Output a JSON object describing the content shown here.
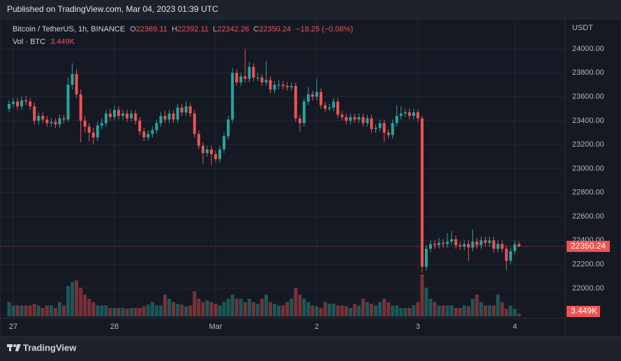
{
  "header": {
    "published": "Published on TradingView.com, Mar 04, 2023 01:39 UTC"
  },
  "legend": {
    "symbol": "Bitcoin / TetherUS, 1h, BINANCE",
    "fields": [
      {
        "key": "O",
        "value": "22369.11"
      },
      {
        "key": "H",
        "value": "22392.11"
      },
      {
        "key": "L",
        "value": "22342.26"
      },
      {
        "key": "C",
        "value": "22350.24"
      }
    ],
    "change": "−18.25 (−0.08%)",
    "volume_title": "Vol · BTC",
    "volume_value": "3.449K"
  },
  "chart_data": {
    "type": "candlestick",
    "ohlc": [
      [
        23500,
        23570,
        23470,
        23540
      ],
      [
        23540,
        23590,
        23510,
        23560
      ],
      [
        23560,
        23590,
        23490,
        23520
      ],
      [
        23520,
        23600,
        23490,
        23570
      ],
      [
        23570,
        23610,
        23530,
        23560
      ],
      [
        23560,
        23590,
        23490,
        23520
      ],
      [
        23520,
        23550,
        23370,
        23400
      ],
      [
        23400,
        23470,
        23370,
        23440
      ],
      [
        23440,
        23470,
        23380,
        23410
      ],
      [
        23410,
        23440,
        23350,
        23380
      ],
      [
        23380,
        23420,
        23350,
        23390
      ],
      [
        23390,
        23420,
        23340,
        23370
      ],
      [
        23370,
        23450,
        23340,
        23420
      ],
      [
        23420,
        23450,
        23380,
        23410
      ],
      [
        23410,
        23760,
        23390,
        23700
      ],
      [
        23700,
        23880,
        23660,
        23790
      ],
      [
        23790,
        23830,
        23590,
        23620
      ],
      [
        23620,
        23660,
        23220,
        23400
      ],
      [
        23400,
        23440,
        23300,
        23350
      ],
      [
        23350,
        23380,
        23230,
        23300
      ],
      [
        23300,
        23340,
        23200,
        23260
      ],
      [
        23260,
        23390,
        23230,
        23360
      ],
      [
        23360,
        23420,
        23330,
        23380
      ],
      [
        23380,
        23490,
        23350,
        23460
      ],
      [
        23460,
        23500,
        23400,
        23430
      ],
      [
        23430,
        23530,
        23400,
        23490
      ],
      [
        23490,
        23520,
        23410,
        23440
      ],
      [
        23440,
        23490,
        23410,
        23460
      ],
      [
        23460,
        23490,
        23390,
        23420
      ],
      [
        23420,
        23490,
        23390,
        23460
      ],
      [
        23460,
        23490,
        23370,
        23400
      ],
      [
        23400,
        23430,
        23280,
        23310
      ],
      [
        23310,
        23340,
        23230,
        23260
      ],
      [
        23260,
        23320,
        23230,
        23290
      ],
      [
        23290,
        23350,
        23260,
        23320
      ],
      [
        23320,
        23410,
        23290,
        23380
      ],
      [
        23380,
        23470,
        23350,
        23440
      ],
      [
        23440,
        23480,
        23380,
        23410
      ],
      [
        23410,
        23490,
        23380,
        23460
      ],
      [
        23460,
        23490,
        23380,
        23410
      ],
      [
        23410,
        23540,
        23380,
        23510
      ],
      [
        23510,
        23540,
        23440,
        23470
      ],
      [
        23470,
        23560,
        23440,
        23520
      ],
      [
        23520,
        23550,
        23430,
        23460
      ],
      [
        23460,
        23490,
        23260,
        23290
      ],
      [
        23290,
        23320,
        23160,
        23190
      ],
      [
        23190,
        23220,
        23040,
        23130
      ],
      [
        23130,
        23190,
        23100,
        23160
      ],
      [
        23160,
        23190,
        23030,
        23120
      ],
      [
        23120,
        23150,
        23050,
        23080
      ],
      [
        23080,
        23190,
        23050,
        23160
      ],
      [
        23160,
        23300,
        23130,
        23270
      ],
      [
        23270,
        23440,
        23240,
        23410
      ],
      [
        23410,
        23840,
        23380,
        23800
      ],
      [
        23800,
        23830,
        23690,
        23720
      ],
      [
        23720,
        23800,
        23690,
        23770
      ],
      [
        23770,
        24000,
        23720,
        23750
      ],
      [
        23750,
        23890,
        23720,
        23850
      ],
      [
        23850,
        23880,
        23730,
        23760
      ],
      [
        23760,
        23800,
        23730,
        23760
      ],
      [
        23760,
        23790,
        23690,
        23720
      ],
      [
        23720,
        23900,
        23690,
        23740
      ],
      [
        23740,
        23770,
        23630,
        23660
      ],
      [
        23660,
        23730,
        23630,
        23700
      ],
      [
        23700,
        23740,
        23660,
        23700
      ],
      [
        23700,
        23730,
        23660,
        23690
      ],
      [
        23690,
        23720,
        23650,
        23680
      ],
      [
        23680,
        23720,
        23650,
        23690
      ],
      [
        23690,
        23720,
        23390,
        23420
      ],
      [
        23420,
        23450,
        23310,
        23380
      ],
      [
        23380,
        23590,
        23350,
        23560
      ],
      [
        23560,
        23680,
        23530,
        23620
      ],
      [
        23620,
        23650,
        23570,
        23600
      ],
      [
        23600,
        23750,
        23570,
        23640
      ],
      [
        23640,
        23670,
        23500,
        23530
      ],
      [
        23530,
        23560,
        23470,
        23500
      ],
      [
        23500,
        23540,
        23480,
        23510
      ],
      [
        23510,
        23590,
        23480,
        23560
      ],
      [
        23560,
        23590,
        23420,
        23450
      ],
      [
        23450,
        23480,
        23400,
        23430
      ],
      [
        23430,
        23460,
        23370,
        23400
      ],
      [
        23400,
        23460,
        23370,
        23430
      ],
      [
        23430,
        23460,
        23380,
        23410
      ],
      [
        23410,
        23460,
        23380,
        23430
      ],
      [
        23430,
        23460,
        23350,
        23380
      ],
      [
        23380,
        23450,
        23350,
        23420
      ],
      [
        23420,
        23450,
        23300,
        23330
      ],
      [
        23330,
        23370,
        23300,
        23340
      ],
      [
        23340,
        23410,
        23310,
        23380
      ],
      [
        23380,
        23410,
        23220,
        23300
      ],
      [
        23300,
        23330,
        23250,
        23280
      ],
      [
        23280,
        23410,
        23250,
        23380
      ],
      [
        23380,
        23530,
        23350,
        23440
      ],
      [
        23440,
        23520,
        23410,
        23460
      ],
      [
        23460,
        23500,
        23430,
        23470
      ],
      [
        23470,
        23500,
        23410,
        23440
      ],
      [
        23440,
        23500,
        23410,
        23470
      ],
      [
        23470,
        23490,
        23390,
        23420
      ],
      [
        23420,
        23440,
        22130,
        22180
      ],
      [
        22180,
        22360,
        22150,
        22330
      ],
      [
        22330,
        22400,
        22300,
        22370
      ],
      [
        22370,
        22400,
        22330,
        22360
      ],
      [
        22360,
        22420,
        22330,
        22380
      ],
      [
        22380,
        22410,
        22340,
        22370
      ],
      [
        22370,
        22460,
        22340,
        22390
      ],
      [
        22390,
        22480,
        22360,
        22410
      ],
      [
        22410,
        22440,
        22330,
        22360
      ],
      [
        22360,
        22390,
        22320,
        22350
      ],
      [
        22350,
        22400,
        22320,
        22370
      ],
      [
        22370,
        22400,
        22230,
        22340
      ],
      [
        22340,
        22490,
        22310,
        22390
      ],
      [
        22390,
        22420,
        22330,
        22360
      ],
      [
        22360,
        22430,
        22330,
        22400
      ],
      [
        22400,
        22430,
        22350,
        22380
      ],
      [
        22380,
        22430,
        22350,
        22400
      ],
      [
        22400,
        22430,
        22300,
        22330
      ],
      [
        22330,
        22400,
        22300,
        22370
      ],
      [
        22370,
        22400,
        22300,
        22330
      ],
      [
        22330,
        22360,
        22150,
        22230
      ],
      [
        22230,
        22340,
        22200,
        22310
      ],
      [
        22310,
        22400,
        22280,
        22368.49
      ],
      [
        22369.11,
        22392.11,
        22342.26,
        22350.24
      ]
    ],
    "volume": [
      17000,
      13000,
      13000,
      13000,
      13000,
      13000,
      15000,
      13000,
      10000,
      13000,
      13000,
      10000,
      17000,
      13000,
      36000,
      41000,
      43000,
      34000,
      26000,
      21000,
      17000,
      13000,
      13000,
      13000,
      10000,
      10000,
      10000,
      10000,
      9000,
      10000,
      10000,
      10000,
      12000,
      14000,
      17000,
      13000,
      13000,
      26000,
      21000,
      17000,
      15000,
      14000,
      12000,
      13000,
      30000,
      21000,
      17000,
      19000,
      17000,
      15000,
      13000,
      17000,
      21000,
      26000,
      21000,
      21000,
      17000,
      21000,
      17000,
      15000,
      21000,
      26000,
      17000,
      15000,
      13000,
      13000,
      17000,
      21000,
      34000,
      26000,
      21000,
      17000,
      13000,
      12000,
      10000,
      17000,
      15000,
      15000,
      13000,
      13000,
      12000,
      10000,
      15000,
      13000,
      21000,
      17000,
      15000,
      13000,
      17000,
      21000,
      17000,
      13000,
      13000,
      10000,
      10000,
      10000,
      13000,
      17000,
      50000,
      34000,
      21000,
      17000,
      13000,
      13000,
      13000,
      13000,
      10000,
      10000,
      13000,
      12000,
      21000,
      26000,
      17000,
      13000,
      13000,
      13000,
      26000,
      17000,
      9000,
      13000,
      9000,
      3449
    ],
    "ylim": [
      21620,
      24245
    ],
    "yticks": [
      {
        "value": 22000,
        "label": "22000.00"
      },
      {
        "value": 22200,
        "label": "22200.00"
      },
      {
        "value": 22400,
        "label": "22400.00"
      },
      {
        "value": 22600,
        "label": "22600.00"
      },
      {
        "value": 22800,
        "label": "22800.00"
      },
      {
        "value": 23000,
        "label": "23000.00"
      },
      {
        "value": 23200,
        "label": "23200.00"
      },
      {
        "value": 23400,
        "label": "23400.00"
      },
      {
        "value": 23600,
        "label": "23600.00"
      },
      {
        "value": 23800,
        "label": "23800.00"
      },
      {
        "value": 24000,
        "label": "24000.00"
      }
    ],
    "y_unit": "USDT",
    "xticks": [
      {
        "value": 1,
        "label": "27"
      },
      {
        "value": 25,
        "label": "28"
      },
      {
        "value": 49,
        "label": "Mar"
      },
      {
        "value": 73,
        "label": "2"
      },
      {
        "value": 97,
        "label": "3"
      },
      {
        "value": 120,
        "label": "4"
      }
    ],
    "colors": {
      "up": "#26a69a",
      "down": "#ef5350"
    },
    "grid": true,
    "last_price_label": "22350.24",
    "last_volume_label": "3.449K"
  },
  "footer": {
    "brand": "TradingView"
  }
}
